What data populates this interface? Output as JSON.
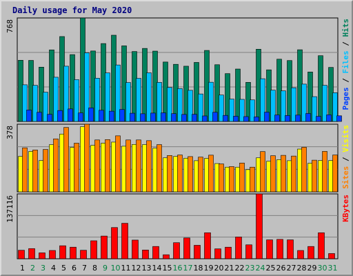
{
  "title": "Daily usage for May 2020",
  "colors": {
    "hits": "#00805c",
    "files": "#00c0ff",
    "pages": "#0040ff",
    "visits": "#ffff00",
    "sites": "#ff8000",
    "kbytes": "#ff0000",
    "weekday_label": "#000000",
    "weekend_label": "#008040",
    "panel_bg": "#c0c0c0",
    "frame_line": "#000000"
  },
  "chart_data": [
    {
      "type": "bar",
      "panel": "top",
      "max_label": "768",
      "ylim": [
        0,
        768
      ],
      "legend": [
        "Pages",
        "Files",
        "Hits"
      ],
      "legend_separator": " / ",
      "categories": [
        "1",
        "2",
        "3",
        "4",
        "5",
        "6",
        "7",
        "8",
        "9",
        "10",
        "11",
        "12",
        "13",
        "14",
        "15",
        "16",
        "17",
        "18",
        "19",
        "20",
        "21",
        "22",
        "23",
        "24",
        "25",
        "26",
        "27",
        "28",
        "29",
        "30",
        "31"
      ],
      "series": [
        {
          "name": "Hits",
          "values": [
            454,
            453,
            403,
            531,
            630,
            496,
            768,
            523,
            578,
            640,
            561,
            519,
            542,
            522,
            441,
            424,
            410,
            438,
            527,
            421,
            355,
            389,
            290,
            536,
            383,
            462,
            452,
            532,
            367,
            488,
            401
          ]
        },
        {
          "name": "Files",
          "values": [
            272,
            268,
            217,
            328,
            410,
            310,
            509,
            321,
            360,
            419,
            289,
            320,
            361,
            290,
            252,
            244,
            231,
            204,
            291,
            196,
            166,
            164,
            160,
            317,
            232,
            227,
            250,
            277,
            184,
            268,
            213
          ]
        },
        {
          "name": "Pages",
          "values": [
            85,
            68,
            53,
            81,
            93,
            63,
            101,
            83,
            76,
            89,
            61,
            57,
            62,
            64,
            58,
            52,
            53,
            41,
            68,
            45,
            39,
            36,
            34,
            69,
            48,
            44,
            47,
            59,
            38,
            49,
            42
          ]
        }
      ]
    },
    {
      "type": "bar",
      "panel": "middle",
      "max_label": "378",
      "ylim": [
        0,
        378
      ],
      "legend": [
        "Sites",
        "Visits"
      ],
      "legend_separator": " / ",
      "categories": [
        "1",
        "2",
        "3",
        "4",
        "5",
        "6",
        "7",
        "8",
        "9",
        "10",
        "11",
        "12",
        "13",
        "14",
        "15",
        "16",
        "17",
        "18",
        "19",
        "20",
        "21",
        "22",
        "23",
        "24",
        "25",
        "26",
        "27",
        "28",
        "29",
        "30",
        "31"
      ],
      "series": [
        {
          "name": "Visits",
          "values": [
            198,
            226,
            175,
            264,
            323,
            248,
            364,
            260,
            272,
            278,
            255,
            265,
            264,
            244,
            190,
            198,
            188,
            174,
            187,
            158,
            138,
            138,
            124,
            190,
            171,
            180,
            174,
            239,
            160,
            175,
            175
          ]
        },
        {
          "name": "Sites",
          "values": [
            246,
            234,
            237,
            296,
            360,
            272,
            378,
            290,
            292,
            313,
            290,
            290,
            286,
            264,
            203,
            206,
            197,
            194,
            205,
            156,
            141,
            161,
            138,
            225,
            202,
            204,
            200,
            249,
            177,
            226,
            206
          ]
        }
      ]
    },
    {
      "type": "bar",
      "panel": "bottom",
      "max_label": "137116",
      "ylim": [
        0,
        137116
      ],
      "legend": [
        "KBytes"
      ],
      "legend_separator": "",
      "categories": [
        "1",
        "2",
        "3",
        "4",
        "5",
        "6",
        "7",
        "8",
        "9",
        "10",
        "11",
        "12",
        "13",
        "14",
        "15",
        "16",
        "17",
        "18",
        "19",
        "20",
        "21",
        "22",
        "23",
        "24",
        "25",
        "26",
        "27",
        "28",
        "29",
        "30",
        "31"
      ],
      "series": [
        {
          "name": "KBytes",
          "values": [
            18000,
            21500,
            12500,
            17500,
            27500,
            24500,
            18000,
            38000,
            48000,
            66000,
            75000,
            39500,
            18500,
            26000,
            8500,
            34000,
            44000,
            28500,
            55000,
            21000,
            24500,
            46000,
            29500,
            137116,
            40000,
            41000,
            40000,
            17500,
            26000,
            55000,
            11000
          ]
        }
      ]
    }
  ],
  "day_labels": [
    "1",
    "2",
    "3",
    "4",
    "5",
    "6",
    "7",
    "8",
    "9",
    "10",
    "11",
    "12",
    "13",
    "14",
    "15",
    "16",
    "17",
    "18",
    "19",
    "20",
    "21",
    "22",
    "23",
    "24",
    "25",
    "26",
    "27",
    "28",
    "29",
    "30",
    "31"
  ],
  "weekend_days": [
    "2",
    "3",
    "9",
    "10",
    "16",
    "17",
    "23",
    "24",
    "30",
    "31"
  ]
}
